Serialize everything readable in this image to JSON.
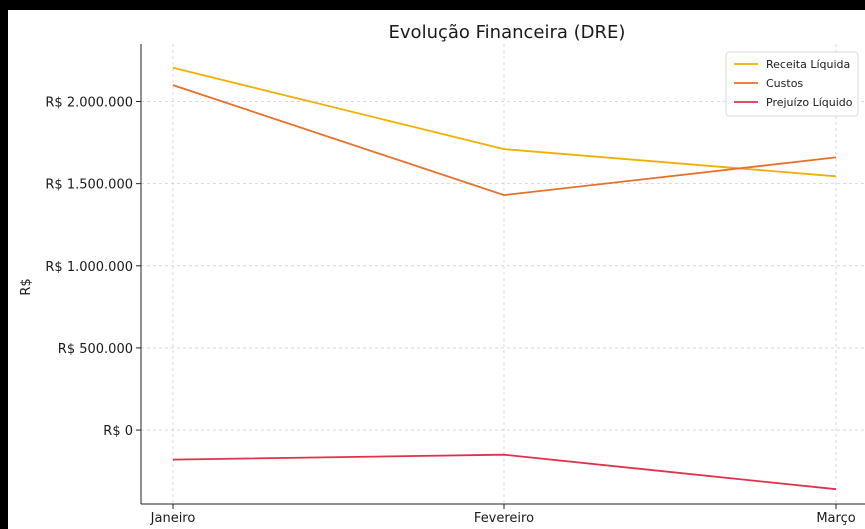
{
  "chart_data": {
    "type": "line",
    "title": "Evolução Financeira (DRE)",
    "xlabel": "",
    "ylabel": "R$",
    "categories": [
      "Janeiro",
      "Fevereiro",
      "Março"
    ],
    "y_ticks": [
      0,
      500000,
      1000000,
      1500000,
      2000000
    ],
    "y_tick_labels": [
      "R$ 0",
      "R$ 500.000",
      "R$ 1.000.000",
      "R$ 1.500.000",
      "R$ 2.000.000"
    ],
    "ylim": [
      -450000,
      2350000
    ],
    "grid": true,
    "legend_position": "top-right",
    "series": [
      {
        "name": "Receita Líquida",
        "color": "#f0b000",
        "values": [
          2205000,
          1710000,
          1545000
        ]
      },
      {
        "name": "Custos",
        "color": "#e8702a",
        "values": [
          2100000,
          1430000,
          1660000
        ]
      },
      {
        "name": "Prejuízo Líquido",
        "color": "#e0314b",
        "values": [
          -180000,
          -150000,
          -360000
        ]
      }
    ]
  }
}
